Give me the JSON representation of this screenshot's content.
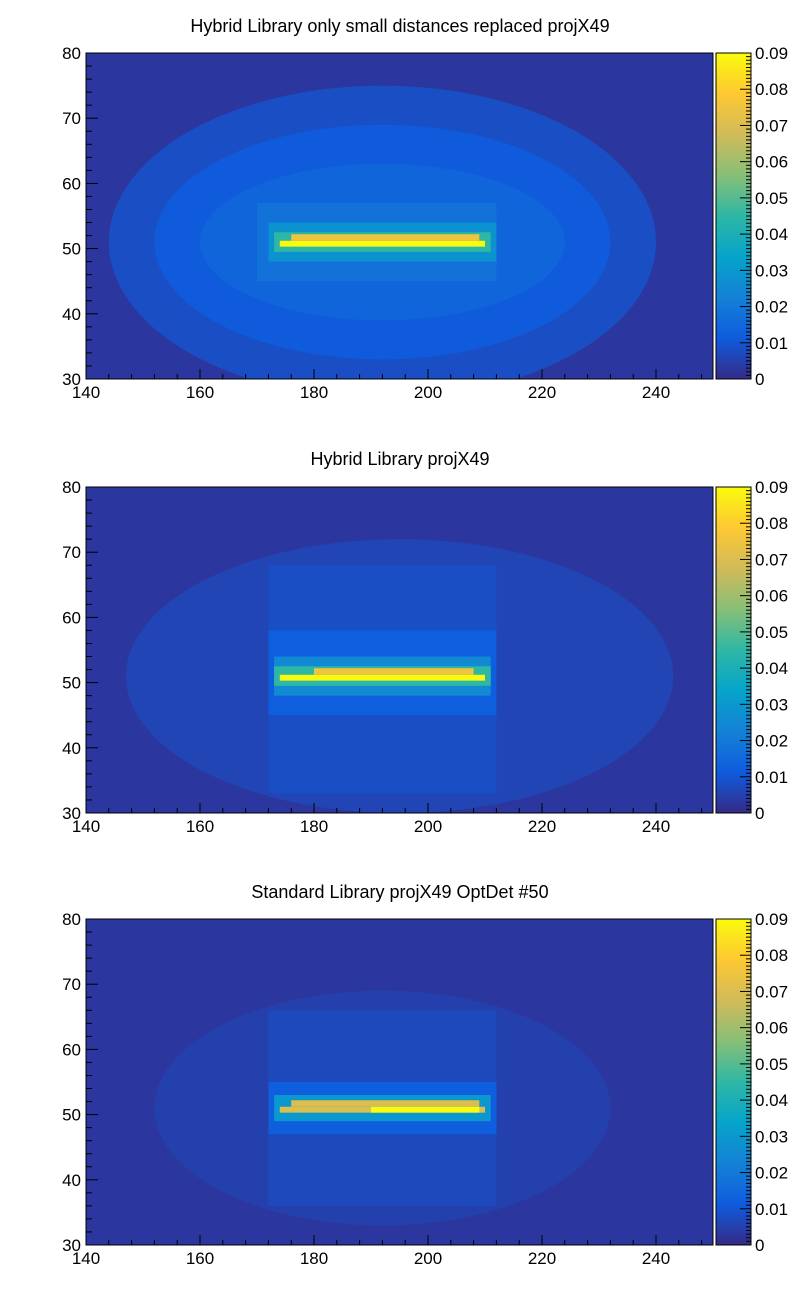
{
  "colormap": [
    "#352a87",
    "#0f5cdd",
    "#1481d6",
    "#06a4ca",
    "#2eb7a4",
    "#87bf77",
    "#d1bb59",
    "#fec832",
    "#f9fb0e"
  ],
  "chart_data": [
    {
      "type": "heatmap",
      "title": "Hybrid Library only small distances replaced projX49",
      "xlim": [
        140,
        250
      ],
      "ylim": [
        30,
        80
      ],
      "x_ticks": [
        140,
        160,
        180,
        200,
        220,
        240
      ],
      "y_ticks": [
        30,
        40,
        50,
        60,
        70,
        80
      ],
      "zlim": [
        0,
        0.09
      ],
      "z_ticks": [
        0,
        0.01,
        0.02,
        0.03,
        0.04,
        0.05,
        0.06,
        0.07,
        0.08,
        0.09
      ],
      "z_tick_labels": [
        "0",
        "0.01",
        "0.02",
        "0.03",
        "0.04",
        "0.05",
        "0.06",
        "0.07",
        "0.08",
        "0.09"
      ],
      "background_value": 0.003,
      "regions": [
        {
          "shape": "ellipse",
          "cx": 192,
          "cy": 51,
          "rx": 48,
          "ry": 24,
          "value": 0.008
        },
        {
          "shape": "ellipse",
          "cx": 192,
          "cy": 51,
          "rx": 40,
          "ry": 18,
          "value": 0.011
        },
        {
          "shape": "ellipse",
          "cx": 192,
          "cy": 51,
          "rx": 32,
          "ry": 12,
          "value": 0.014
        },
        {
          "shape": "rect",
          "x0": 170,
          "x1": 212,
          "y0": 45,
          "y1": 57,
          "value": 0.018
        },
        {
          "shape": "rect",
          "x0": 172,
          "x1": 212,
          "y0": 48,
          "y1": 54,
          "value": 0.028
        },
        {
          "shape": "rect",
          "x0": 173,
          "x1": 211,
          "y0": 49.5,
          "y1": 52.5,
          "value": 0.045
        },
        {
          "shape": "rect",
          "x0": 174,
          "x1": 210,
          "y0": 50.3,
          "y1": 51.2,
          "value": 0.09
        },
        {
          "shape": "rect",
          "x0": 176,
          "x1": 209,
          "y0": 51.2,
          "y1": 52.2,
          "value": 0.075
        }
      ]
    },
    {
      "type": "heatmap",
      "title": "Hybrid Library projX49",
      "xlim": [
        140,
        250
      ],
      "ylim": [
        30,
        80
      ],
      "x_ticks": [
        140,
        160,
        180,
        200,
        220,
        240
      ],
      "y_ticks": [
        30,
        40,
        50,
        60,
        70,
        80
      ],
      "zlim": [
        0,
        0.09
      ],
      "z_ticks": [
        0,
        0.01,
        0.02,
        0.03,
        0.04,
        0.05,
        0.06,
        0.07,
        0.08,
        0.09
      ],
      "z_tick_labels": [
        "0",
        "0.01",
        "0.02",
        "0.03",
        "0.04",
        "0.05",
        "0.06",
        "0.07",
        "0.08",
        "0.09"
      ],
      "background_value": 0.003,
      "regions": [
        {
          "shape": "ellipse",
          "cx": 195,
          "cy": 51,
          "rx": 48,
          "ry": 21,
          "value": 0.006
        },
        {
          "shape": "rect",
          "x0": 172,
          "x1": 212,
          "y0": 33,
          "y1": 68,
          "value": 0.008
        },
        {
          "shape": "rect",
          "x0": 172,
          "x1": 212,
          "y0": 45,
          "y1": 58,
          "value": 0.012
        },
        {
          "shape": "rect",
          "x0": 173,
          "x1": 211,
          "y0": 48,
          "y1": 54,
          "value": 0.025
        },
        {
          "shape": "rect",
          "x0": 173,
          "x1": 211,
          "y0": 49.5,
          "y1": 52.5,
          "value": 0.045
        },
        {
          "shape": "rect",
          "x0": 174,
          "x1": 210,
          "y0": 50.3,
          "y1": 51.2,
          "value": 0.09
        },
        {
          "shape": "rect",
          "x0": 180,
          "x1": 208,
          "y0": 51.2,
          "y1": 52.2,
          "value": 0.075
        }
      ]
    },
    {
      "type": "heatmap",
      "title": "Standard Library projX49 OptDet #50",
      "xlim": [
        140,
        250
      ],
      "ylim": [
        30,
        80
      ],
      "x_ticks": [
        140,
        160,
        180,
        200,
        220,
        240
      ],
      "y_ticks": [
        30,
        40,
        50,
        60,
        70,
        80
      ],
      "zlim": [
        0,
        0.09
      ],
      "z_ticks": [
        0,
        0.01,
        0.02,
        0.03,
        0.04,
        0.05,
        0.06,
        0.07,
        0.08,
        0.09
      ],
      "z_tick_labels": [
        "0",
        "0.01",
        "0.02",
        "0.03",
        "0.04",
        "0.05",
        "0.06",
        "0.07",
        "0.08",
        "0.09"
      ],
      "background_value": 0.003,
      "regions": [
        {
          "shape": "ellipse",
          "cx": 192,
          "cy": 51,
          "rx": 40,
          "ry": 18,
          "value": 0.005
        },
        {
          "shape": "rect",
          "x0": 172,
          "x1": 212,
          "y0": 36,
          "y1": 66,
          "value": 0.007
        },
        {
          "shape": "rect",
          "x0": 172,
          "x1": 212,
          "y0": 47,
          "y1": 55,
          "value": 0.012
        },
        {
          "shape": "rect",
          "x0": 173,
          "x1": 211,
          "y0": 49,
          "y1": 53,
          "value": 0.03
        },
        {
          "shape": "rect",
          "x0": 174,
          "x1": 210,
          "y0": 50.3,
          "y1": 51.2,
          "value": 0.07
        },
        {
          "shape": "rect",
          "x0": 190,
          "x1": 209,
          "y0": 50.3,
          "y1": 51.2,
          "value": 0.09
        },
        {
          "shape": "rect",
          "x0": 176,
          "x1": 209,
          "y0": 51.2,
          "y1": 52.2,
          "value": 0.07
        }
      ]
    }
  ]
}
